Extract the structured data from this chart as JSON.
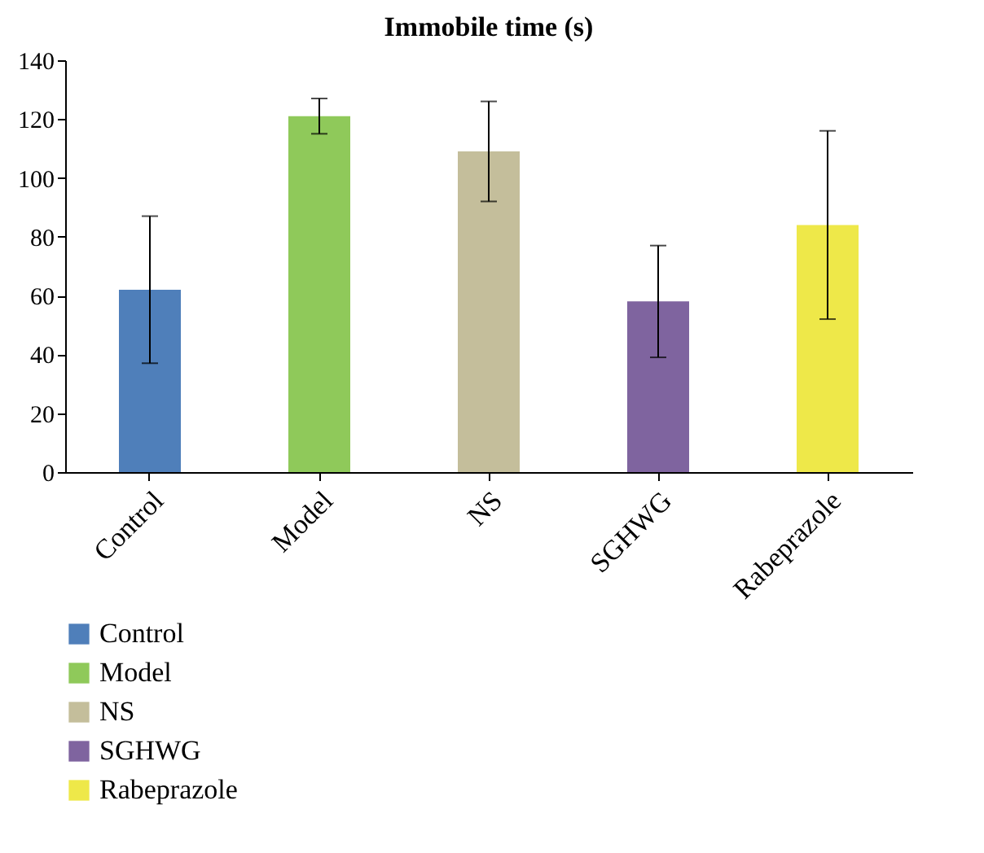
{
  "chart_data": {
    "type": "bar",
    "title": "Immobile time (s)",
    "stacked": true,
    "categories": [
      "Control",
      "Model",
      "NS",
      "SGHWG",
      "Rabeprazole"
    ],
    "series": [
      {
        "name": "Control",
        "color": "#4f7fba",
        "values": [
          62,
          null,
          null,
          null,
          null
        ],
        "errors": [
          25,
          null,
          null,
          null,
          null
        ]
      },
      {
        "name": "Model",
        "color": "#8fc95a",
        "values": [
          null,
          121,
          null,
          null,
          null
        ],
        "errors": [
          null,
          6,
          null,
          null,
          null
        ]
      },
      {
        "name": "NS",
        "color": "#c4be9b",
        "values": [
          null,
          null,
          109,
          null,
          null
        ],
        "errors": [
          null,
          null,
          17,
          null,
          null
        ]
      },
      {
        "name": "SGHWG",
        "color": "#7f649f",
        "values": [
          null,
          null,
          null,
          58,
          null
        ],
        "errors": [
          null,
          null,
          null,
          19,
          null
        ]
      },
      {
        "name": "Rabeprazole",
        "color": "#eee849",
        "values": [
          null,
          null,
          null,
          null,
          84
        ],
        "errors": [
          null,
          null,
          null,
          null,
          32
        ]
      }
    ],
    "ylim": [
      0,
      140
    ],
    "yticks": [
      0,
      20,
      40,
      60,
      80,
      100,
      120,
      140
    ],
    "grid": false,
    "legend": "bottom left"
  }
}
